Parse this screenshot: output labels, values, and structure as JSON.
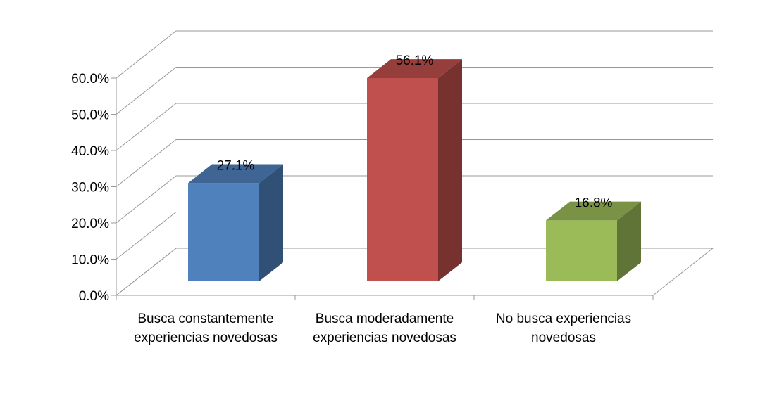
{
  "chart_data": {
    "type": "bar3d",
    "categories": [
      "Busca constantemente experiencias novedosas",
      "Busca moderadamente experiencias novedosas",
      "No busca experiencias novedosas"
    ],
    "values": [
      27.1,
      56.1,
      16.8
    ],
    "value_labels": [
      "27.1%",
      "56.1%",
      "16.8%"
    ],
    "colors": [
      "#4f81bd",
      "#c0504d",
      "#9bbb59"
    ],
    "ylim": [
      0,
      60
    ],
    "yticks": [
      {
        "value": 0,
        "label": "0.0%"
      },
      {
        "value": 10,
        "label": "10.0%"
      },
      {
        "value": 20,
        "label": "20.0%"
      },
      {
        "value": 30,
        "label": "30.0%"
      },
      {
        "value": 40,
        "label": "40.0%"
      },
      {
        "value": 50,
        "label": "50.0%"
      },
      {
        "value": 60,
        "label": "60.0%"
      }
    ],
    "grid": true
  }
}
